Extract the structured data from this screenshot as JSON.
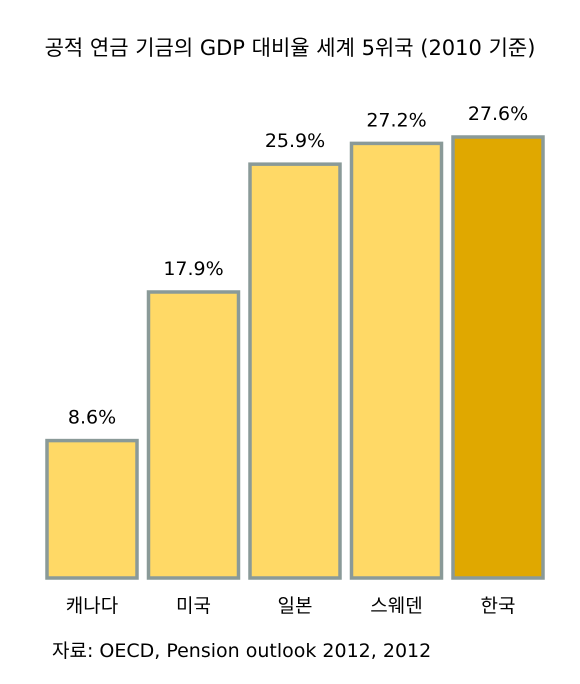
{
  "title": "공적 연금 기금의 GDP 대비율 세계 5위국 (2010 기준)",
  "source": "자료: OECD, Pension outlook 2012, 2012",
  "chart_data": {
    "type": "bar",
    "title": "공적 연금 기금의 GDP 대비율 세계 5위국 (2010 기준)",
    "categories": [
      "캐나다",
      "미국",
      "일본",
      "스웨덴",
      "한국"
    ],
    "values": [
      8.6,
      17.9,
      25.9,
      27.2,
      27.6
    ],
    "data_labels": [
      "8.6%",
      "17.9%",
      "25.9%",
      "27.2%",
      "27.6%"
    ],
    "unit": "%",
    "ylim": [
      0,
      27.6
    ],
    "grid": false,
    "legend": "none",
    "colors": {
      "bar": "#FFD966",
      "highlight_bar": "#E0A800",
      "bar_border": "#8A9A98"
    },
    "highlight_index": 4
  }
}
